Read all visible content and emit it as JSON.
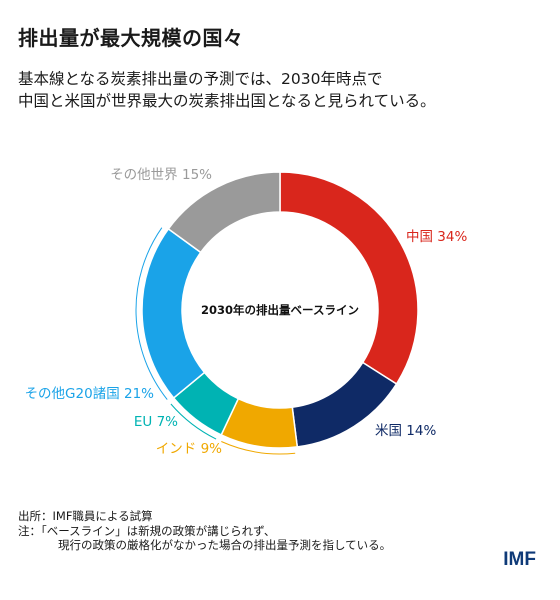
{
  "header": {
    "title": "排出量が最大規模の国々",
    "subtitle_line1": "基本線となる炭素排出量の予測では、2030年時点で",
    "subtitle_line2": "中国と米国が世界最大の炭素排出国となると見られている。"
  },
  "chart_data": {
    "type": "pie",
    "donut": true,
    "center_label": "2030年の排出量ベースライン",
    "slices": [
      {
        "name": "中国",
        "value": 34,
        "label": "中国 34%",
        "color": "#d9261c"
      },
      {
        "name": "米国",
        "value": 14,
        "label": "米国 14%",
        "color": "#0f2a66"
      },
      {
        "name": "インド",
        "value": 9,
        "label": "インド 9%",
        "color": "#f0a800"
      },
      {
        "name": "EU",
        "value": 7,
        "label": "EU 7%",
        "color": "#00b3b3"
      },
      {
        "name": "その他G20諸国",
        "value": 21,
        "label": "その他G20諸国 21%",
        "color": "#1aa3e8"
      },
      {
        "name": "その他世界",
        "value": 15,
        "label": "その他世界 15%",
        "color": "#9a9a9a"
      }
    ]
  },
  "footer": {
    "source": "出所：IMF職員による試算",
    "note_line1": "注：「ベースライン」は新規の政策が講じられず、",
    "note_line2": "現行の政策の厳格化がなかった場合の排出量予測を指している。"
  },
  "brand": {
    "logo": "IMF",
    "color": "#0f3a78"
  }
}
